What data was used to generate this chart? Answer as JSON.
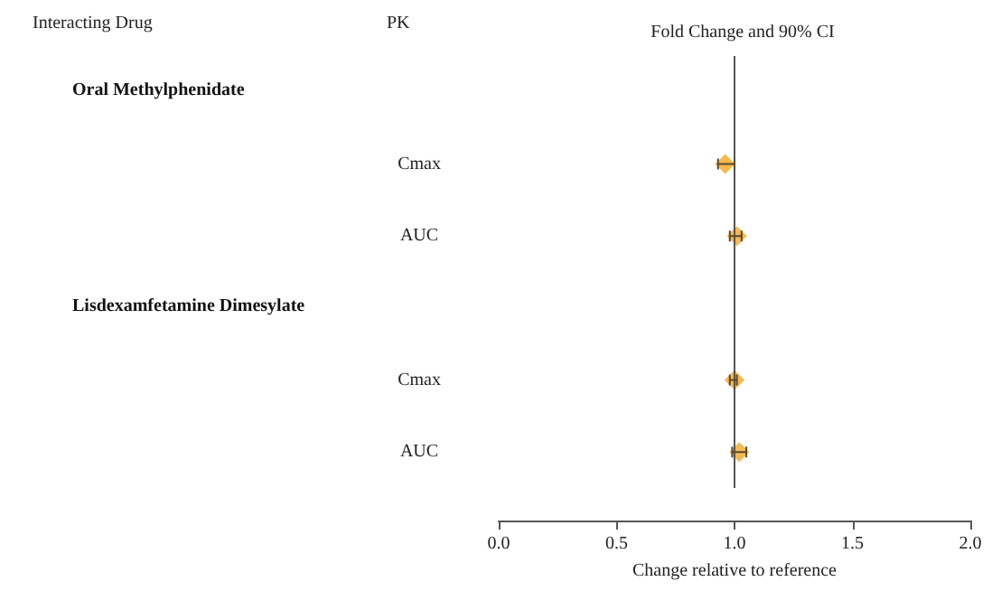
{
  "chart_data": {
    "type": "scatter",
    "orientation": "horizontal",
    "title": "Fold Change and 90% CI",
    "xlabel": "Change relative to reference",
    "annotations": [
      "Interacting Drug",
      "PK",
      "Oral Methylphenidate",
      "Lisdexamfetamine Dimesylate"
    ],
    "categories": [
      null,
      "Cmax",
      "AUC",
      null,
      "Cmax",
      "AUC"
    ],
    "values": [
      null,
      0.96,
      1.01,
      null,
      1.0,
      1.02
    ],
    "errors": [
      null,
      [
        0.93,
        1.0
      ],
      [
        0.98,
        1.03
      ],
      null,
      [
        0.98,
        1.01
      ],
      [
        0.99,
        1.05
      ]
    ],
    "color": "#f5a623",
    "marker": "diamond",
    "grid": false,
    "legend": false,
    "xlim": [
      0,
      2
    ],
    "xticks": [
      {
        "value": 0,
        "label": "0.0"
      },
      {
        "value": 0.5,
        "label": "0.5"
      },
      {
        "value": 1,
        "label": "1.0"
      },
      {
        "value": 1.5,
        "label": "1.5"
      },
      {
        "value": 2,
        "label": "2.0"
      }
    ],
    "ref_lines": [
      {
        "axis": "x",
        "value": 1,
        "color": "#555555"
      }
    ]
  }
}
